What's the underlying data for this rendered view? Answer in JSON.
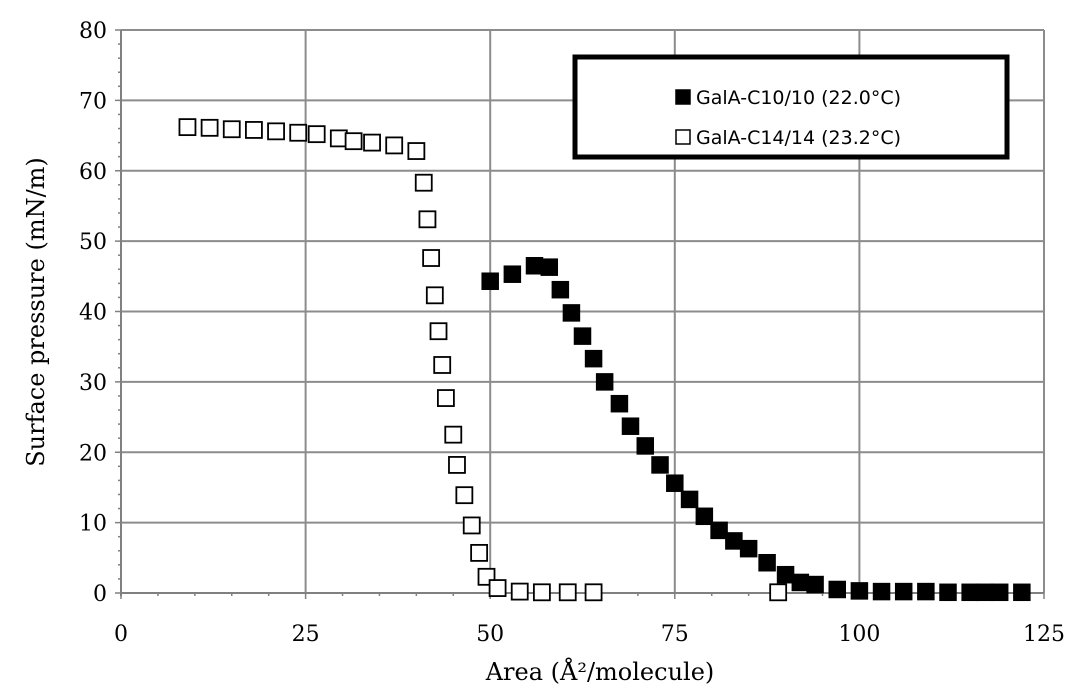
{
  "chart_data": {
    "type": "scatter",
    "xlabel": "Area (Å²/molecule)",
    "ylabel": "Surface pressure (mN/m)",
    "xlim": [
      0,
      125
    ],
    "ylim": [
      0,
      80
    ],
    "x_ticks": [
      "0",
      "25",
      "50",
      "75",
      "100",
      "125"
    ],
    "y_ticks": [
      "0",
      "10",
      "20",
      "30",
      "40",
      "50",
      "60",
      "70",
      "80"
    ],
    "grid": true,
    "legend_position": "top-right",
    "series": [
      {
        "name": "GalA-C10/10 (22.0°C)",
        "marker": "filled-square",
        "color": "#000000",
        "x": [
          50.0,
          53.0,
          56.0,
          58.0,
          59.5,
          61.0,
          62.5,
          64.0,
          65.5,
          67.5,
          69.0,
          71.0,
          73.0,
          75.0,
          77.0,
          79.0,
          81.0,
          83.0,
          85.0,
          87.5,
          90.0,
          92.0,
          94.0,
          97.0,
          100.0,
          103.0,
          106.0,
          109.0,
          112.0,
          115.0,
          117.0,
          119.0,
          122.0
        ],
        "y": [
          44.3,
          45.3,
          46.5,
          46.3,
          43.1,
          39.8,
          36.5,
          33.3,
          30.0,
          26.9,
          23.7,
          20.9,
          18.2,
          15.6,
          13.3,
          10.9,
          8.9,
          7.4,
          6.3,
          4.3,
          2.6,
          1.5,
          1.2,
          0.5,
          0.3,
          0.2,
          0.2,
          0.2,
          0.1,
          0.1,
          0.1,
          0.1,
          0.1
        ]
      },
      {
        "name": "GalA-C14/14 (23.2°C)",
        "marker": "open-square",
        "color": "#000000",
        "x": [
          9.0,
          12.0,
          15.0,
          18.0,
          21.0,
          24.0,
          26.5,
          29.5,
          31.5,
          34.0,
          37.0,
          40.0,
          41.0,
          41.5,
          42.0,
          42.5,
          43.0,
          43.5,
          44.0,
          45.0,
          45.5,
          46.5,
          47.5,
          48.5,
          49.5,
          51.0,
          54.0,
          57.0,
          60.5,
          64.0,
          89.0
        ],
        "y": [
          66.2,
          66.1,
          65.9,
          65.8,
          65.6,
          65.4,
          65.2,
          64.6,
          64.2,
          64.0,
          63.6,
          62.8,
          58.3,
          53.1,
          47.6,
          42.3,
          37.2,
          32.4,
          27.7,
          22.5,
          18.2,
          13.9,
          9.6,
          5.7,
          2.3,
          0.7,
          0.2,
          0.1,
          0.1,
          0.1,
          0.1
        ]
      }
    ]
  }
}
